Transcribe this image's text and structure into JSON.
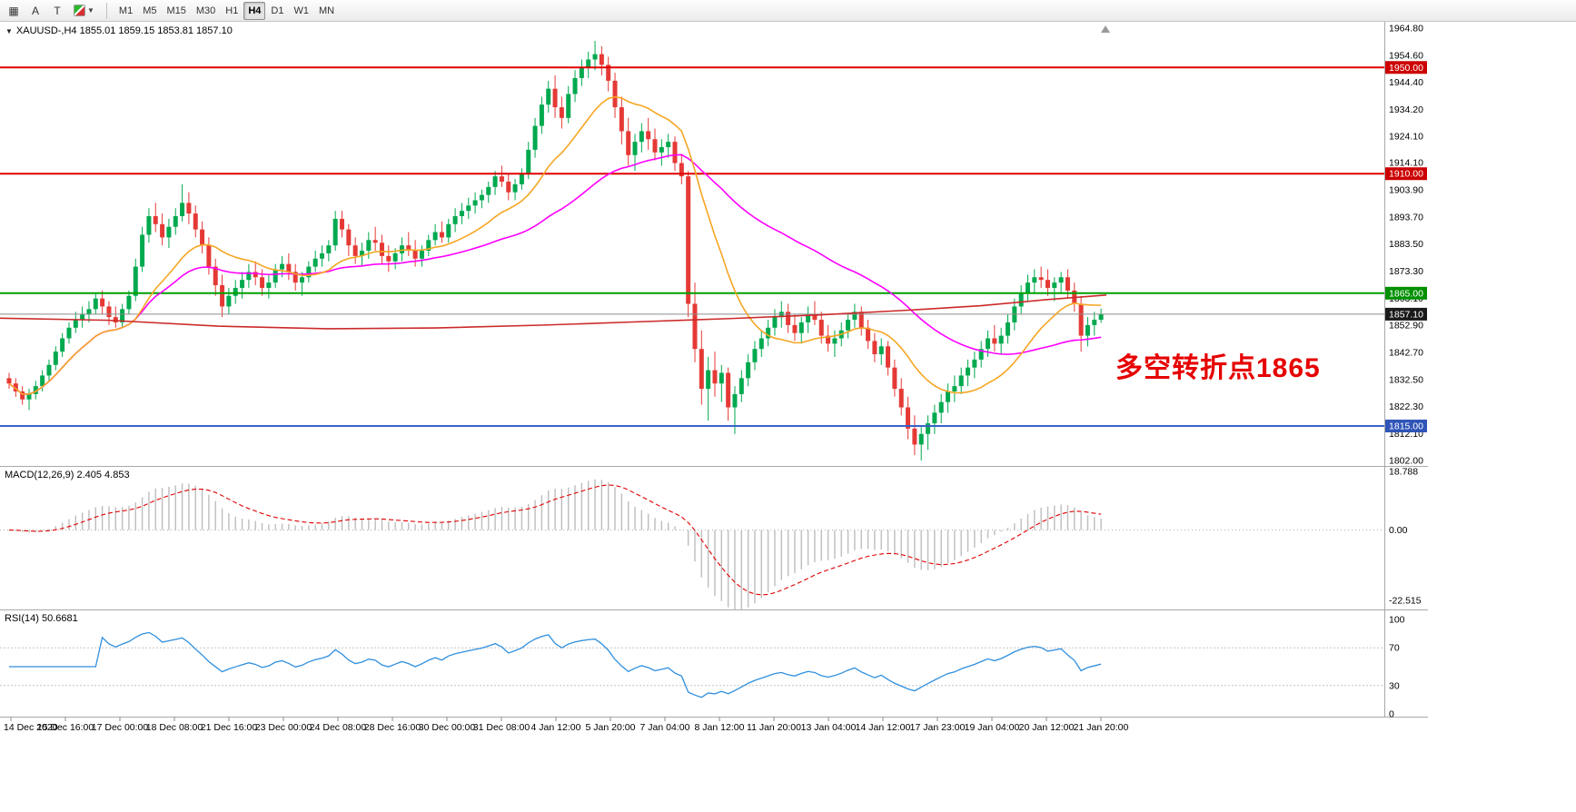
{
  "toolbar": {
    "icons": [
      {
        "name": "grid-icon",
        "glyph": "▦"
      },
      {
        "name": "text-cursor-icon",
        "glyph": "A"
      },
      {
        "name": "template-icon",
        "glyph": "T"
      },
      {
        "name": "indicators-color-icon",
        "glyph": ""
      },
      {
        "name": "dropdown-arrow-icon",
        "glyph": "▼"
      }
    ],
    "timeframes": [
      {
        "label": "M1",
        "active": false
      },
      {
        "label": "M5",
        "active": false
      },
      {
        "label": "M15",
        "active": false
      },
      {
        "label": "M30",
        "active": false
      },
      {
        "label": "H1",
        "active": false
      },
      {
        "label": "H4",
        "active": true
      },
      {
        "label": "D1",
        "active": false
      },
      {
        "label": "W1",
        "active": false
      },
      {
        "label": "MN",
        "active": false
      }
    ]
  },
  "chart_header": {
    "dropdown_icon": "▼",
    "title": "XAUUSD-,H4 1855.01 1859.15 1853.81 1857.10"
  },
  "annotation": {
    "text": "多空转折点1865",
    "color": "#e60000"
  },
  "indicators": {
    "macd": {
      "label": "MACD(12,26,9) 2.405 4.853",
      "axis_labels": [
        "18.788",
        "0.00",
        "-22.515"
      ],
      "params": {
        "fast": 12,
        "slow": 26,
        "signal": 9
      },
      "colors": {
        "histogram": "#bdbdbd",
        "signal": "#e00000"
      }
    },
    "rsi": {
      "label": "RSI(14) 50.6681",
      "axis_labels": [
        "100",
        "70",
        "30",
        "0"
      ],
      "period": 14,
      "level_lines": [
        70,
        30
      ],
      "color": "#2f8fde"
    }
  },
  "chart_data": {
    "type": "candlestick",
    "symbol": "XAUUSD-",
    "timeframe": "H4",
    "last_bar": {
      "open": 1855.01,
      "high": 1859.15,
      "low": 1853.81,
      "close": 1857.1
    },
    "price_axis_labels": [
      "1964.80",
      "1954.60",
      "1944.40",
      "1934.20",
      "1924.10",
      "1914.10",
      "1903.90",
      "1893.70",
      "1883.50",
      "1873.30",
      "1863.10",
      "1852.90",
      "1842.70",
      "1832.50",
      "1822.30",
      "1812.10",
      "1802.00"
    ],
    "price_range": [
      1802.0,
      1964.8
    ],
    "time_axis_labels": [
      "14 Dec 2020",
      "15 Dec 16:00",
      "17 Dec 00:00",
      "18 Dec 08:00",
      "21 Dec 16:00",
      "23 Dec 00:00",
      "24 Dec 08:00",
      "28 Dec 16:00",
      "30 Dec 00:00",
      "31 Dec 08:00",
      "4 Jan 12:00",
      "5 Jan 20:00",
      "7 Jan 04:00",
      "8 Jan 12:00",
      "11 Jan 20:00",
      "13 Jan 04:00",
      "14 Jan 12:00",
      "17 Jan 23:00",
      "19 Jan 04:00",
      "20 Jan 12:00",
      "21 Jan 20:00"
    ],
    "levels": [
      {
        "label": "1950.00",
        "price": 1950.0,
        "line_color": "#e00000",
        "badge_color": "#cc0000",
        "width": 2
      },
      {
        "label": "1910.00",
        "price": 1910.0,
        "line_color": "#e00000",
        "badge_color": "#cc0000",
        "width": 2
      },
      {
        "label": "1865.00",
        "price": 1865.0,
        "line_color": "#00a000",
        "badge_color": "#009000",
        "width": 2
      },
      {
        "label": "1857.10",
        "price": 1857.1,
        "line_color": "#8c8c8c",
        "badge_color": "#1a1a1a",
        "width": 1
      },
      {
        "label": "1815.00",
        "price": 1815.0,
        "line_color": "#3a62c8",
        "badge_color": "#2f55b8",
        "width": 2
      }
    ],
    "moving_averages": {
      "orange": {
        "type": "lwma",
        "period": 20,
        "color": "#f5a623"
      },
      "magenta": {
        "type": "lwma",
        "period": 60,
        "color": "#ff00ff"
      },
      "red": {
        "type": "manual",
        "color": "#cc2a2a",
        "points": [
          [
            0,
            1855.6
          ],
          [
            120,
            1854.8
          ],
          [
            240,
            1852.6
          ],
          [
            360,
            1851.6
          ],
          [
            480,
            1851.9
          ],
          [
            600,
            1853.0
          ],
          [
            700,
            1854.2
          ],
          [
            800,
            1855.4
          ],
          [
            900,
            1856.8
          ],
          [
            1000,
            1858.6
          ],
          [
            1080,
            1860.3
          ],
          [
            1150,
            1862.5
          ],
          [
            1218,
            1864.3
          ]
        ]
      }
    },
    "colors": {
      "bull": "#00a94f",
      "bear": "#e53935"
    },
    "candles": [
      [
        1833,
        1835,
        1829,
        1831
      ],
      [
        1831,
        1833,
        1826,
        1828
      ],
      [
        1828,
        1830,
        1823,
        1825
      ],
      [
        1825,
        1829,
        1821,
        1827
      ],
      [
        1827,
        1832,
        1825,
        1830
      ],
      [
        1830,
        1836,
        1828,
        1834
      ],
      [
        1834,
        1840,
        1832,
        1838
      ],
      [
        1838,
        1845,
        1836,
        1843
      ],
      [
        1843,
        1850,
        1841,
        1848
      ],
      [
        1848,
        1854,
        1846,
        1852
      ],
      [
        1852,
        1858,
        1850,
        1855
      ],
      [
        1855,
        1860,
        1852,
        1857
      ],
      [
        1857,
        1862,
        1854,
        1859
      ],
      [
        1859,
        1865,
        1857,
        1863
      ],
      [
        1863,
        1866,
        1857,
        1860
      ],
      [
        1860,
        1862,
        1853,
        1856
      ],
      [
        1856,
        1860,
        1852,
        1854
      ],
      [
        1854,
        1861,
        1852,
        1859
      ],
      [
        1859,
        1866,
        1857,
        1864
      ],
      [
        1864,
        1878,
        1862,
        1875
      ],
      [
        1875,
        1890,
        1873,
        1887
      ],
      [
        1887,
        1897,
        1884,
        1894
      ],
      [
        1894,
        1899,
        1888,
        1891
      ],
      [
        1891,
        1895,
        1883,
        1886
      ],
      [
        1886,
        1893,
        1882,
        1890
      ],
      [
        1890,
        1897,
        1887,
        1894
      ],
      [
        1894,
        1906,
        1892,
        1899
      ],
      [
        1899,
        1903,
        1891,
        1895
      ],
      [
        1895,
        1898,
        1886,
        1889
      ],
      [
        1889,
        1892,
        1880,
        1883
      ],
      [
        1883,
        1886,
        1872,
        1875
      ],
      [
        1875,
        1878,
        1864,
        1868
      ],
      [
        1868,
        1872,
        1856,
        1860
      ],
      [
        1860,
        1867,
        1857,
        1864
      ],
      [
        1864,
        1870,
        1861,
        1867
      ],
      [
        1867,
        1873,
        1863,
        1870
      ],
      [
        1870,
        1876,
        1867,
        1873
      ],
      [
        1873,
        1877,
        1868,
        1871
      ],
      [
        1871,
        1874,
        1864,
        1867
      ],
      [
        1867,
        1872,
        1863,
        1869
      ],
      [
        1869,
        1876,
        1867,
        1874
      ],
      [
        1874,
        1879,
        1871,
        1876
      ],
      [
        1876,
        1880,
        1870,
        1873
      ],
      [
        1873,
        1876,
        1866,
        1869
      ],
      [
        1869,
        1873,
        1864,
        1871
      ],
      [
        1871,
        1877,
        1869,
        1875
      ],
      [
        1875,
        1881,
        1873,
        1878
      ],
      [
        1878,
        1883,
        1875,
        1880
      ],
      [
        1880,
        1885,
        1877,
        1883
      ],
      [
        1883,
        1896,
        1881,
        1893
      ],
      [
        1893,
        1896,
        1886,
        1889
      ],
      [
        1889,
        1891,
        1879,
        1883
      ],
      [
        1883,
        1886,
        1876,
        1879
      ],
      [
        1879,
        1884,
        1875,
        1881
      ],
      [
        1881,
        1888,
        1878,
        1885
      ],
      [
        1885,
        1890,
        1881,
        1884
      ],
      [
        1884,
        1887,
        1876,
        1879
      ],
      [
        1879,
        1883,
        1873,
        1877
      ],
      [
        1877,
        1882,
        1874,
        1880
      ],
      [
        1880,
        1886,
        1877,
        1883
      ],
      [
        1883,
        1888,
        1879,
        1881
      ],
      [
        1881,
        1885,
        1875,
        1878
      ],
      [
        1878,
        1883,
        1875,
        1881
      ],
      [
        1881,
        1887,
        1879,
        1885
      ],
      [
        1885,
        1891,
        1883,
        1888
      ],
      [
        1888,
        1892,
        1884,
        1886
      ],
      [
        1886,
        1893,
        1884,
        1891
      ],
      [
        1891,
        1897,
        1888,
        1894
      ],
      [
        1894,
        1899,
        1891,
        1896
      ],
      [
        1896,
        1901,
        1893,
        1898
      ],
      [
        1898,
        1903,
        1895,
        1900
      ],
      [
        1900,
        1904,
        1897,
        1902
      ],
      [
        1902,
        1907,
        1899,
        1905
      ],
      [
        1905,
        1911,
        1902,
        1909
      ],
      [
        1909,
        1913,
        1905,
        1907
      ],
      [
        1907,
        1910,
        1900,
        1903
      ],
      [
        1903,
        1908,
        1900,
        1906
      ],
      [
        1906,
        1912,
        1904,
        1910
      ],
      [
        1910,
        1922,
        1908,
        1919
      ],
      [
        1919,
        1931,
        1916,
        1928
      ],
      [
        1928,
        1939,
        1925,
        1936
      ],
      [
        1936,
        1945,
        1933,
        1942
      ],
      [
        1942,
        1947,
        1931,
        1935
      ],
      [
        1935,
        1939,
        1927,
        1931
      ],
      [
        1931,
        1943,
        1929,
        1940
      ],
      [
        1940,
        1949,
        1937,
        1946
      ],
      [
        1946,
        1953,
        1943,
        1950
      ],
      [
        1950,
        1956,
        1946,
        1953
      ],
      [
        1953,
        1960,
        1949,
        1955
      ],
      [
        1955,
        1958,
        1947,
        1951
      ],
      [
        1951,
        1954,
        1941,
        1945
      ],
      [
        1945,
        1948,
        1931,
        1935
      ],
      [
        1935,
        1939,
        1921,
        1926
      ],
      [
        1926,
        1931,
        1913,
        1917
      ],
      [
        1917,
        1925,
        1911,
        1922
      ],
      [
        1922,
        1929,
        1918,
        1926
      ],
      [
        1926,
        1931,
        1919,
        1923
      ],
      [
        1923,
        1927,
        1915,
        1918
      ],
      [
        1918,
        1923,
        1913,
        1920
      ],
      [
        1920,
        1925,
        1916,
        1922
      ],
      [
        1922,
        1924,
        1911,
        1914
      ],
      [
        1914,
        1917,
        1906,
        1909
      ],
      [
        1909,
        1911,
        1856,
        1861
      ],
      [
        1861,
        1869,
        1839,
        1844
      ],
      [
        1844,
        1851,
        1823,
        1829
      ],
      [
        1829,
        1841,
        1817,
        1836
      ],
      [
        1836,
        1843,
        1826,
        1831
      ],
      [
        1831,
        1838,
        1824,
        1835
      ],
      [
        1835,
        1837,
        1817,
        1822
      ],
      [
        1822,
        1830,
        1812,
        1827
      ],
      [
        1827,
        1836,
        1824,
        1833
      ],
      [
        1833,
        1842,
        1830,
        1839
      ],
      [
        1839,
        1847,
        1836,
        1844
      ],
      [
        1844,
        1851,
        1841,
        1848
      ],
      [
        1848,
        1855,
        1845,
        1852
      ],
      [
        1852,
        1859,
        1849,
        1856
      ],
      [
        1856,
        1862,
        1852,
        1858
      ],
      [
        1858,
        1861,
        1850,
        1853
      ],
      [
        1853,
        1857,
        1847,
        1850
      ],
      [
        1850,
        1856,
        1846,
        1854
      ],
      [
        1854,
        1860,
        1850,
        1857
      ],
      [
        1857,
        1862,
        1853,
        1855
      ],
      [
        1855,
        1858,
        1846,
        1849
      ],
      [
        1849,
        1853,
        1843,
        1846
      ],
      [
        1846,
        1851,
        1841,
        1848
      ],
      [
        1848,
        1854,
        1845,
        1851
      ],
      [
        1851,
        1857,
        1848,
        1855
      ],
      [
        1855,
        1861,
        1852,
        1858
      ],
      [
        1858,
        1860,
        1849,
        1852
      ],
      [
        1852,
        1855,
        1844,
        1847
      ],
      [
        1847,
        1850,
        1839,
        1842
      ],
      [
        1842,
        1848,
        1838,
        1845
      ],
      [
        1845,
        1847,
        1834,
        1837
      ],
      [
        1837,
        1840,
        1826,
        1829
      ],
      [
        1829,
        1833,
        1819,
        1822
      ],
      [
        1822,
        1826,
        1810,
        1814
      ],
      [
        1814,
        1819,
        1804,
        1808
      ],
      [
        1808,
        1815,
        1802,
        1812
      ],
      [
        1812,
        1819,
        1806,
        1816
      ],
      [
        1816,
        1823,
        1812,
        1820
      ],
      [
        1820,
        1827,
        1816,
        1824
      ],
      [
        1824,
        1831,
        1820,
        1828
      ],
      [
        1828,
        1834,
        1824,
        1830
      ],
      [
        1830,
        1837,
        1827,
        1834
      ],
      [
        1834,
        1840,
        1830,
        1837
      ],
      [
        1837,
        1843,
        1833,
        1840
      ],
      [
        1840,
        1847,
        1837,
        1844
      ],
      [
        1844,
        1851,
        1841,
        1848
      ],
      [
        1848,
        1853,
        1843,
        1846
      ],
      [
        1846,
        1852,
        1842,
        1849
      ],
      [
        1849,
        1857,
        1846,
        1854
      ],
      [
        1854,
        1863,
        1851,
        1860
      ],
      [
        1860,
        1868,
        1857,
        1865
      ],
      [
        1865,
        1872,
        1862,
        1869
      ],
      [
        1869,
        1874,
        1865,
        1871
      ],
      [
        1871,
        1875,
        1867,
        1870
      ],
      [
        1870,
        1874,
        1864,
        1867
      ],
      [
        1867,
        1871,
        1862,
        1869
      ],
      [
        1869,
        1873,
        1865,
        1871
      ],
      [
        1871,
        1874,
        1863,
        1866
      ],
      [
        1866,
        1869,
        1858,
        1861
      ],
      [
        1861,
        1864,
        1843,
        1849
      ],
      [
        1849,
        1856,
        1845,
        1853
      ],
      [
        1853,
        1858,
        1849,
        1855
      ],
      [
        1855,
        1859.2,
        1853.8,
        1857.1
      ]
    ]
  }
}
